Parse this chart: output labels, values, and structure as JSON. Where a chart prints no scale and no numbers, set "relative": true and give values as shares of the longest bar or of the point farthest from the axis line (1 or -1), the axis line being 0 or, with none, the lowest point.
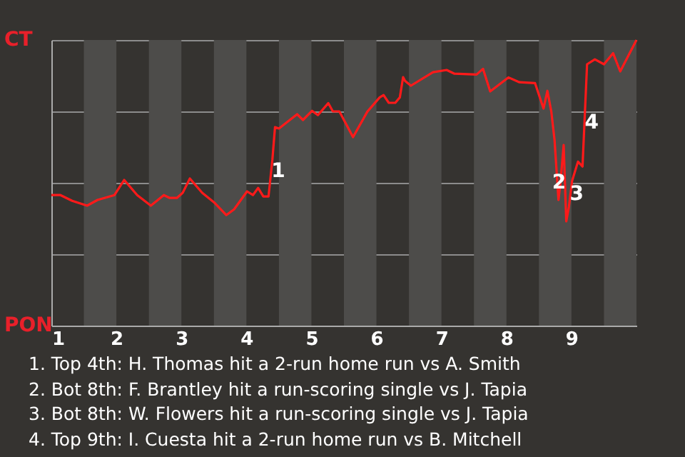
{
  "chart_data": {
    "type": "line",
    "x": [
      1.0,
      1.14,
      1.32,
      1.55,
      1.71,
      1.97,
      2.12,
      2.32,
      2.53,
      2.73,
      2.82,
      2.93,
      3.02,
      3.13,
      3.32,
      3.5,
      3.69,
      3.81,
      4.01,
      4.1,
      4.18,
      4.26,
      4.34,
      4.4,
      4.44,
      4.5,
      4.78,
      4.87,
      5.01,
      5.1,
      5.26,
      5.33,
      5.43,
      5.64,
      5.86,
      6.05,
      6.11,
      6.19,
      6.29,
      6.36,
      6.41,
      6.44,
      6.53,
      6.87,
      7.08,
      7.2,
      7.54,
      7.64,
      7.75,
      8.03,
      8.2,
      8.44,
      8.57,
      8.63,
      8.69,
      8.74,
      8.8,
      8.83,
      8.88,
      8.92,
      8.96,
      9.01,
      9.1,
      9.17,
      9.24,
      9.36,
      9.5,
      9.64,
      9.75,
      10.0
    ],
    "relative": true,
    "series": [
      {
        "color": "#ff1a1a",
        "values": [
          0.457,
          0.457,
          0.437,
          0.42,
          0.44,
          0.457,
          0.51,
          0.457,
          0.42,
          0.457,
          0.447,
          0.447,
          0.465,
          0.515,
          0.465,
          0.432,
          0.387,
          0.407,
          0.47,
          0.457,
          0.482,
          0.452,
          0.452,
          0.582,
          0.695,
          0.69,
          0.74,
          0.72,
          0.752,
          0.737,
          0.779,
          0.75,
          0.75,
          0.66,
          0.749,
          0.799,
          0.807,
          0.78,
          0.78,
          0.799,
          0.87,
          0.857,
          0.84,
          0.887,
          0.895,
          0.882,
          0.879,
          0.899,
          0.82,
          0.869,
          0.852,
          0.849,
          0.76,
          0.822,
          0.749,
          0.649,
          0.44,
          0.499,
          0.632,
          0.365,
          0.415,
          0.507,
          0.574,
          0.557,
          0.915,
          0.932,
          0.915,
          0.954,
          0.89,
          1.0
        ]
      }
    ],
    "xlim": [
      1,
      10
    ],
    "xticks": [
      1,
      2,
      3,
      4,
      5,
      6,
      7,
      8,
      9
    ],
    "grid": "y",
    "bands": [
      {
        "axis": "x",
        "from": 1.5,
        "to": 2,
        "color": "#4d4c4a"
      },
      {
        "axis": "x",
        "from": 2.5,
        "to": 3,
        "color": "#4d4c4a"
      },
      {
        "axis": "x",
        "from": 3.5,
        "to": 4,
        "color": "#4d4c4a"
      },
      {
        "axis": "x",
        "from": 4.5,
        "to": 5,
        "color": "#4d4c4a"
      },
      {
        "axis": "x",
        "from": 5.5,
        "to": 6,
        "color": "#4d4c4a"
      },
      {
        "axis": "x",
        "from": 6.5,
        "to": 7,
        "color": "#4d4c4a"
      },
      {
        "axis": "x",
        "from": 7.5,
        "to": 8,
        "color": "#4d4c4a"
      },
      {
        "axis": "x",
        "from": 8.5,
        "to": 9,
        "color": "#4d4c4a"
      },
      {
        "axis": "x",
        "from": 9.5,
        "to": 10,
        "color": "#4d4c4a"
      }
    ],
    "annotations": [
      "CT",
      "PON",
      {
        "text": "1",
        "x": 4.49,
        "y": 0.54
      },
      {
        "text": "2",
        "x": 8.81,
        "y": 0.5
      },
      {
        "text": "3",
        "x": 9.08,
        "y": 0.46
      },
      {
        "text": "4",
        "x": 9.31,
        "y": 0.71
      },
      "1. Top 4th: H. Thomas hit a 2-run home run vs A. Smith",
      "2. Bot 8th: F. Brantley hit a run-scoring single vs J. Tapia",
      "3. Bot 8th: W. Flowers hit a run-scoring single vs J. Tapia",
      "4. Top 9th: I. Cuesta hit a 2-run home run vs B. Mitchell"
    ]
  }
}
